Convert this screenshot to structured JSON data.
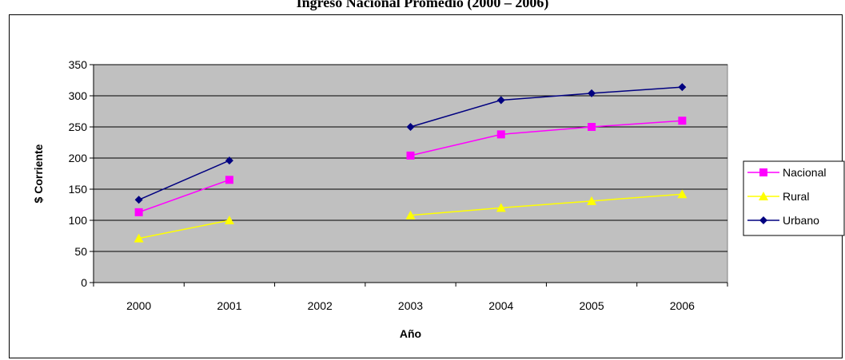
{
  "chart_data": {
    "type": "line",
    "title": "Ingreso Nacional Promedio (2000 – 2006)",
    "xlabel": "Año",
    "ylabel": "$ Corriente",
    "categories": [
      "2000",
      "2001",
      "2002",
      "2003",
      "2004",
      "2005",
      "2006"
    ],
    "ylim": [
      0,
      350
    ],
    "yticks": [
      0,
      50,
      100,
      150,
      200,
      250,
      300,
      350
    ],
    "grid": true,
    "legend_position": "right",
    "plot_background": "#c0c0c0",
    "series": [
      {
        "name": "Nacional",
        "color": "#ff00ff",
        "marker": "square",
        "values": [
          113,
          165,
          null,
          204,
          238,
          250,
          260
        ]
      },
      {
        "name": "Rural",
        "color": "#ffff00",
        "marker": "triangle",
        "values": [
          71,
          100,
          null,
          108,
          120,
          131,
          142
        ]
      },
      {
        "name": "Urbano",
        "color": "#000080",
        "marker": "diamond",
        "values": [
          133,
          196,
          null,
          250,
          293,
          304,
          314
        ]
      }
    ]
  }
}
